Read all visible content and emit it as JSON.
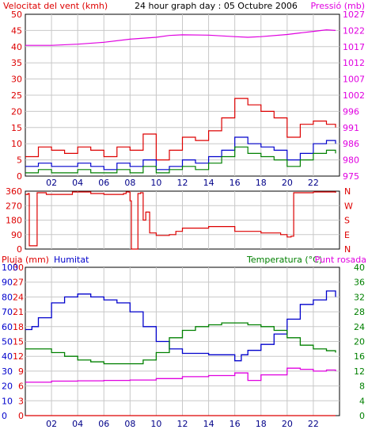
{
  "chart_data": [
    {
      "type": "line",
      "title": "24 hour graph day : 05 Octubre 2006",
      "ylabel": "Velocitat del vent (kmh)",
      "y2label": "Pressió (mb)",
      "xticks": [
        "02",
        "04",
        "06",
        "08",
        "10",
        "12",
        "14",
        "16",
        "18",
        "20",
        "22"
      ],
      "x_hour_range": [
        0,
        24
      ],
      "ylim": [
        0,
        50
      ],
      "yticks": [
        "0",
        "5",
        "10",
        "15",
        "20",
        "25",
        "30",
        "35",
        "40",
        "45",
        "50"
      ],
      "y2lim": [
        975,
        1027
      ],
      "y2ticks": [
        "975",
        "980",
        "986",
        "991",
        "996",
        "1002",
        "1007",
        "1012",
        "1017",
        "1022",
        "1027"
      ],
      "grid": true,
      "colors": {
        "gust": "#dd0000",
        "average": "#0000cc",
        "min": "#008000",
        "pressure": "#e000e0"
      },
      "series": [
        {
          "key": "gust",
          "axis": "left",
          "hours": [
            0,
            1,
            2,
            3,
            4,
            5,
            6,
            7,
            8,
            9,
            10,
            11,
            12,
            13,
            14,
            15,
            16,
            17,
            18,
            19,
            20,
            21,
            22,
            23,
            23.7
          ],
          "values": [
            6,
            9,
            8,
            7,
            9,
            8,
            6,
            9,
            8,
            13,
            5,
            8,
            12,
            11,
            14,
            18,
            24,
            22,
            20,
            18,
            12,
            16,
            17,
            16,
            15
          ]
        },
        {
          "key": "average",
          "axis": "left",
          "hours": [
            0,
            1,
            2,
            3,
            4,
            5,
            6,
            7,
            8,
            9,
            10,
            11,
            12,
            13,
            14,
            15,
            16,
            17,
            18,
            19,
            20,
            21,
            22,
            23,
            23.7
          ],
          "values": [
            3,
            4,
            3,
            3,
            4,
            3,
            2,
            4,
            3,
            5,
            2,
            3,
            5,
            4,
            6,
            8,
            12,
            10,
            9,
            8,
            5,
            7,
            10,
            11,
            10
          ]
        },
        {
          "key": "min",
          "axis": "left",
          "hours": [
            0,
            1,
            2,
            3,
            4,
            5,
            6,
            7,
            8,
            9,
            10,
            11,
            12,
            13,
            14,
            15,
            16,
            17,
            18,
            19,
            20,
            21,
            22,
            23,
            23.7
          ],
          "values": [
            1,
            2,
            1,
            1,
            2,
            1,
            1,
            2,
            1,
            3,
            1,
            2,
            3,
            2,
            4,
            6,
            9,
            7,
            6,
            5,
            3,
            5,
            7,
            8,
            7
          ]
        },
        {
          "key": "pressure",
          "axis": "right",
          "hours": [
            0,
            2,
            4,
            6,
            8,
            10,
            11,
            12,
            14,
            16,
            17,
            18,
            20,
            21,
            22,
            23,
            23.7
          ],
          "values": [
            1017.0,
            1017.0,
            1017.4,
            1018.0,
            1019.0,
            1019.6,
            1020.2,
            1020.4,
            1020.3,
            1019.8,
            1019.6,
            1019.8,
            1020.5,
            1021.0,
            1021.5,
            1022.0,
            1021.8
          ]
        }
      ]
    },
    {
      "type": "line",
      "title": "",
      "ylim": [
        0,
        360
      ],
      "yticks": [
        "0",
        "90",
        "180",
        "270",
        "360"
      ],
      "y2ticks": [
        "N",
        "E",
        "S",
        "W",
        "N"
      ],
      "x_hour_range": [
        0,
        24
      ],
      "grid": true,
      "colors": {
        "direction": "#dd0000"
      },
      "series": [
        {
          "key": "direction",
          "hours": [
            0,
            0.2,
            0.3,
            0.8,
            0.9,
            1.4,
            1.6,
            3.5,
            3.6,
            5.0,
            6.0,
            7.5,
            7.7,
            8.0,
            8.1,
            8.3,
            8.6,
            8.8,
            9.0,
            9.2,
            9.5,
            10.0,
            11.0,
            11.5,
            12.0,
            14.0,
            16.0,
            18.0,
            19.5,
            20.0,
            20.3,
            20.5,
            22.0,
            23.7
          ],
          "values": [
            340,
            345,
            20,
            20,
            350,
            350,
            340,
            340,
            355,
            345,
            340,
            345,
            355,
            300,
            0,
            0,
            345,
            350,
            180,
            230,
            100,
            85,
            90,
            110,
            130,
            140,
            110,
            100,
            90,
            75,
            80,
            350,
            355,
            350
          ]
        }
      ]
    },
    {
      "type": "line",
      "title": "",
      "ylabel_left": "Pluja (mm)",
      "ylabel_humidity": "Humitat",
      "ylabel_right": "Temperatura (°C)",
      "ylabel_dewpoint": "Punt rosada",
      "x_hour_range": [
        0,
        24
      ],
      "xticks": [
        "02",
        "04",
        "06",
        "08",
        "10",
        "12",
        "14",
        "16",
        "18",
        "20",
        "22"
      ],
      "left_ticks_rain": [
        "0",
        "3",
        "6",
        "9",
        "12",
        "15",
        "18",
        "21",
        "24",
        "27",
        "30"
      ],
      "left_ticks_humidity": [
        "0",
        "10",
        "20",
        "30",
        "40",
        "50",
        "60",
        "70",
        "80",
        "90",
        "100"
      ],
      "right_ticks_temp": [
        "0",
        "4",
        "8",
        "12",
        "16",
        "20",
        "24",
        "28",
        "32",
        "36",
        "40"
      ],
      "grid": true,
      "colors": {
        "rain": "#dd0000",
        "humidity": "#0000cc",
        "temperature": "#008000",
        "dewpoint": "#e000e0"
      },
      "series": [
        {
          "key": "rain",
          "axis": "rain",
          "hours": [
            0,
            23.7
          ],
          "values": [
            0,
            0
          ]
        },
        {
          "key": "humidity",
          "axis": "humidity",
          "hours": [
            0,
            0.5,
            1,
            2,
            3,
            4,
            5,
            6,
            7,
            8,
            9,
            10,
            11,
            12,
            13,
            14,
            15,
            16,
            16.5,
            17,
            18,
            19,
            20,
            21,
            22,
            23,
            23.7
          ],
          "values": [
            58,
            60,
            66,
            76,
            80,
            82,
            80,
            78,
            76,
            70,
            60,
            50,
            45,
            42,
            42,
            41,
            41,
            37,
            41,
            44,
            48,
            55,
            65,
            75,
            78,
            84,
            80
          ]
        },
        {
          "key": "temperature",
          "axis": "temp",
          "hours": [
            0,
            1,
            2,
            3,
            4,
            5,
            6,
            7,
            8,
            9,
            10,
            11,
            12,
            13,
            14,
            15,
            16,
            17,
            18,
            19,
            20,
            21,
            22,
            23,
            23.7
          ],
          "values": [
            18,
            18,
            17,
            16,
            15,
            14.5,
            14,
            14,
            14,
            15,
            17,
            21,
            23,
            24,
            24.5,
            25,
            25,
            24.5,
            24,
            23,
            21,
            19,
            18,
            17.5,
            17
          ]
        },
        {
          "key": "dewpoint",
          "axis": "temp",
          "hours": [
            0,
            2,
            4,
            6,
            8,
            10,
            12,
            14,
            16,
            17,
            18,
            20,
            21,
            22,
            23,
            23.7
          ],
          "values": [
            9,
            9.3,
            9.4,
            9.5,
            9.6,
            10,
            10.5,
            10.8,
            11.5,
            9.5,
            11,
            12.8,
            12.5,
            12,
            12.3,
            12
          ]
        }
      ]
    }
  ]
}
